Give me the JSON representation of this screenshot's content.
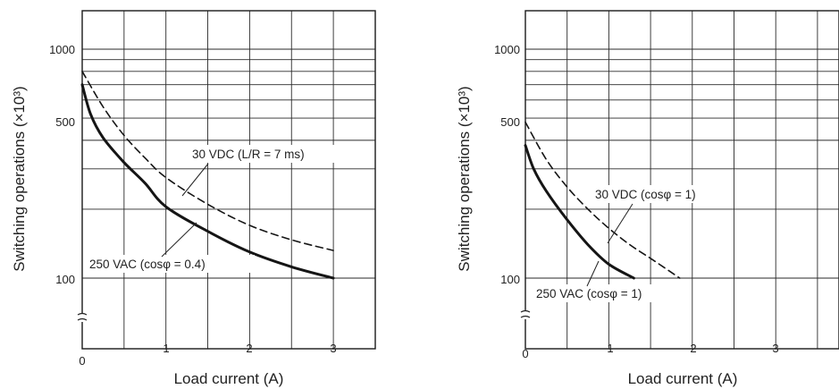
{
  "chart_data": [
    {
      "type": "line",
      "title": "",
      "xlabel": "Load current (A)",
      "ylabel": "Switching operations (×10³)",
      "y_scale": "log",
      "grid": true,
      "xlim": [
        0,
        3.5
      ],
      "ylim": [
        62,
        1700
      ],
      "x_ticks": [
        "0",
        "1",
        "2",
        "3"
      ],
      "y_ticks": [
        "100",
        "500",
        "1000"
      ],
      "series": [
        {
          "name": "30 VDC (L/R = 7 ms)",
          "style": "dashed",
          "x": [
            0,
            0.25,
            0.5,
            0.75,
            1.0,
            1.5,
            2.0,
            2.5,
            3.0
          ],
          "y": [
            800,
            560,
            420,
            335,
            275,
            210,
            170,
            147,
            132
          ]
        },
        {
          "name": "250 VAC (cosφ = 0.4)",
          "style": "solid",
          "x": [
            0,
            0.1,
            0.25,
            0.5,
            0.75,
            1.0,
            1.5,
            2.0,
            2.5,
            3.0
          ],
          "y": [
            700,
            520,
            410,
            320,
            260,
            205,
            160,
            130,
            112,
            100
          ]
        }
      ],
      "annotations": [
        "30 VDC (L/R = 7 ms)",
        "250 VAC (cosφ = 0.4)"
      ]
    },
    {
      "type": "line",
      "title": "",
      "xlabel": "Load current (A)",
      "ylabel": "Switching operations (×10³)",
      "y_scale": "log",
      "grid": true,
      "xlim": [
        0,
        3.5
      ],
      "ylim": [
        62,
        1700
      ],
      "x_ticks": [
        "0",
        "1",
        "2",
        "3"
      ],
      "y_ticks": [
        "100",
        "500",
        "1000"
      ],
      "series": [
        {
          "name": "30 VDC (cosφ = 1)",
          "style": "dashed",
          "x": [
            0,
            0.25,
            0.5,
            0.75,
            1.0,
            1.25,
            1.5,
            1.85
          ],
          "y": [
            480,
            330,
            250,
            200,
            165,
            140,
            122,
            100
          ]
        },
        {
          "name": "250 VAC (cosφ = 1)",
          "style": "solid",
          "x": [
            0,
            0.1,
            0.25,
            0.5,
            0.75,
            1.0,
            1.3
          ],
          "y": [
            380,
            300,
            240,
            180,
            140,
            115,
            100
          ]
        }
      ],
      "annotations": [
        "30 VDC (cosφ = 1)",
        "250 VAC (cosφ = 1)"
      ]
    }
  ]
}
